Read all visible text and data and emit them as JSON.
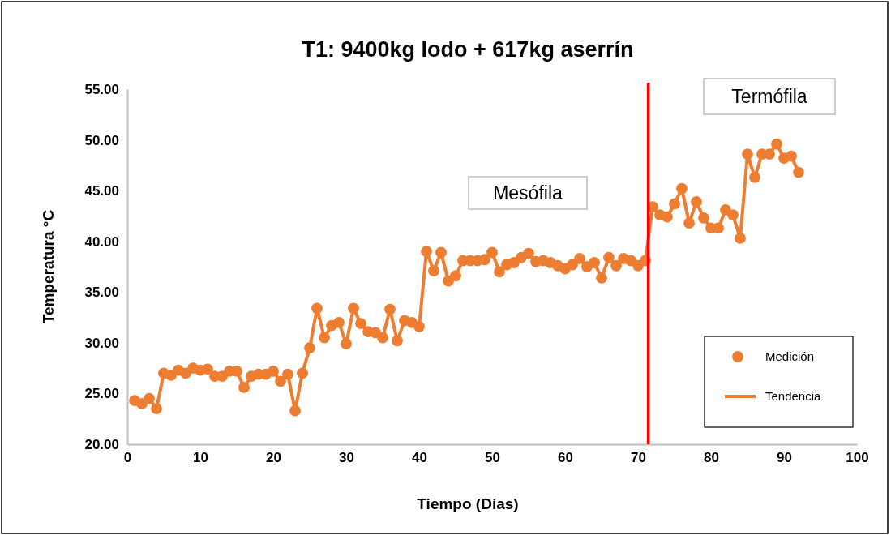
{
  "chart_data": {
    "type": "line",
    "title": "T1: 9400kg lodo + 617kg aserrín",
    "xlabel": "Tiempo (Días)",
    "ylabel": "Temperatura °C",
    "x": [
      1,
      2,
      3,
      4,
      5,
      6,
      7,
      8,
      9,
      10,
      11,
      12,
      13,
      14,
      15,
      16,
      17,
      18,
      19,
      20,
      21,
      22,
      23,
      24,
      25,
      26,
      27,
      28,
      29,
      30,
      31,
      32,
      33,
      34,
      35,
      36,
      37,
      38,
      39,
      40,
      41,
      42,
      43,
      44,
      45,
      46,
      47,
      48,
      49,
      50,
      51,
      52,
      53,
      54,
      55,
      56,
      57,
      58,
      59,
      60,
      61,
      62,
      63,
      64,
      65,
      66,
      67,
      68,
      69,
      70,
      71,
      72,
      73,
      74,
      75,
      76,
      77,
      78,
      79,
      80,
      81,
      82,
      83,
      84,
      85,
      86,
      87,
      88,
      89,
      90,
      91,
      92
    ],
    "series": [
      {
        "name": "Medición",
        "type": "scatter",
        "marker": "circle",
        "color": "#ed7d31",
        "values": [
          24.3,
          24.0,
          24.5,
          23.5,
          27.0,
          26.8,
          27.3,
          27.0,
          27.5,
          27.3,
          27.4,
          26.7,
          26.7,
          27.2,
          27.2,
          25.6,
          26.7,
          26.9,
          26.9,
          27.2,
          26.2,
          26.9,
          23.3,
          27.0,
          29.5,
          33.4,
          30.5,
          31.7,
          32.0,
          29.9,
          33.4,
          31.9,
          31.1,
          31.0,
          30.5,
          33.3,
          30.2,
          32.2,
          32.0,
          31.6,
          39.0,
          37.1,
          38.9,
          36.1,
          36.6,
          38.1,
          38.1,
          38.1,
          38.2,
          38.9,
          37.0,
          37.7,
          37.9,
          38.4,
          38.8,
          38.0,
          38.1,
          37.9,
          37.6,
          37.3,
          37.7,
          38.3,
          37.5,
          37.9,
          36.4,
          38.4,
          37.6,
          38.3,
          38.1,
          37.6,
          38.1,
          43.4,
          42.6,
          42.4,
          43.7,
          45.2,
          41.8,
          43.9,
          42.3,
          41.3,
          41.3,
          43.1,
          42.6,
          40.3,
          48.6,
          46.3,
          48.6,
          48.6,
          49.6,
          48.2,
          48.4,
          46.8
        ]
      },
      {
        "name": "Tendencia",
        "color": "#ed7d31",
        "values": [
          24.3,
          24.0,
          24.5,
          23.5,
          27.0,
          26.8,
          27.3,
          27.0,
          27.5,
          27.3,
          27.4,
          26.7,
          26.7,
          27.2,
          27.2,
          25.6,
          26.7,
          26.9,
          26.9,
          27.2,
          26.2,
          26.9,
          23.3,
          27.0,
          29.5,
          33.4,
          30.5,
          31.7,
          32.0,
          29.9,
          33.4,
          31.9,
          31.1,
          31.0,
          30.5,
          33.3,
          30.2,
          32.2,
          32.0,
          31.6,
          39.0,
          37.1,
          38.9,
          36.1,
          36.6,
          38.1,
          38.1,
          38.1,
          38.2,
          38.9,
          37.0,
          37.7,
          37.9,
          38.4,
          38.8,
          38.0,
          38.1,
          37.9,
          37.6,
          37.3,
          37.7,
          38.3,
          37.5,
          37.9,
          36.4,
          38.4,
          37.6,
          38.3,
          38.1,
          37.6,
          38.1,
          43.4,
          42.6,
          42.4,
          43.7,
          45.2,
          41.8,
          43.9,
          42.3,
          41.3,
          41.3,
          43.1,
          42.6,
          40.3,
          48.6,
          46.3,
          48.6,
          48.6,
          49.6,
          48.2,
          48.4,
          46.8
        ]
      }
    ],
    "xlim": [
      0,
      100
    ],
    "xticks": [
      0,
      10,
      20,
      30,
      40,
      50,
      60,
      70,
      80,
      90,
      100
    ],
    "ylim": [
      20,
      55
    ],
    "yticks": [
      {
        "value": 20,
        "label": "20.00"
      },
      {
        "value": 25,
        "label": "25.00"
      },
      {
        "value": 30,
        "label": "30.00"
      },
      {
        "value": 35,
        "label": "35.00"
      },
      {
        "value": 40,
        "label": "40.00"
      },
      {
        "value": 45,
        "label": "45.00"
      },
      {
        "value": 50,
        "label": "50.00"
      },
      {
        "value": 55,
        "label": "55.00"
      }
    ],
    "ref_lines": [
      {
        "axis": "x",
        "value": 71.4,
        "color": "#ff0000"
      }
    ],
    "annotations": [
      "Mesófila",
      "Termófila"
    ],
    "legend": "bottom right",
    "line_style": "solid",
    "grid": false
  }
}
